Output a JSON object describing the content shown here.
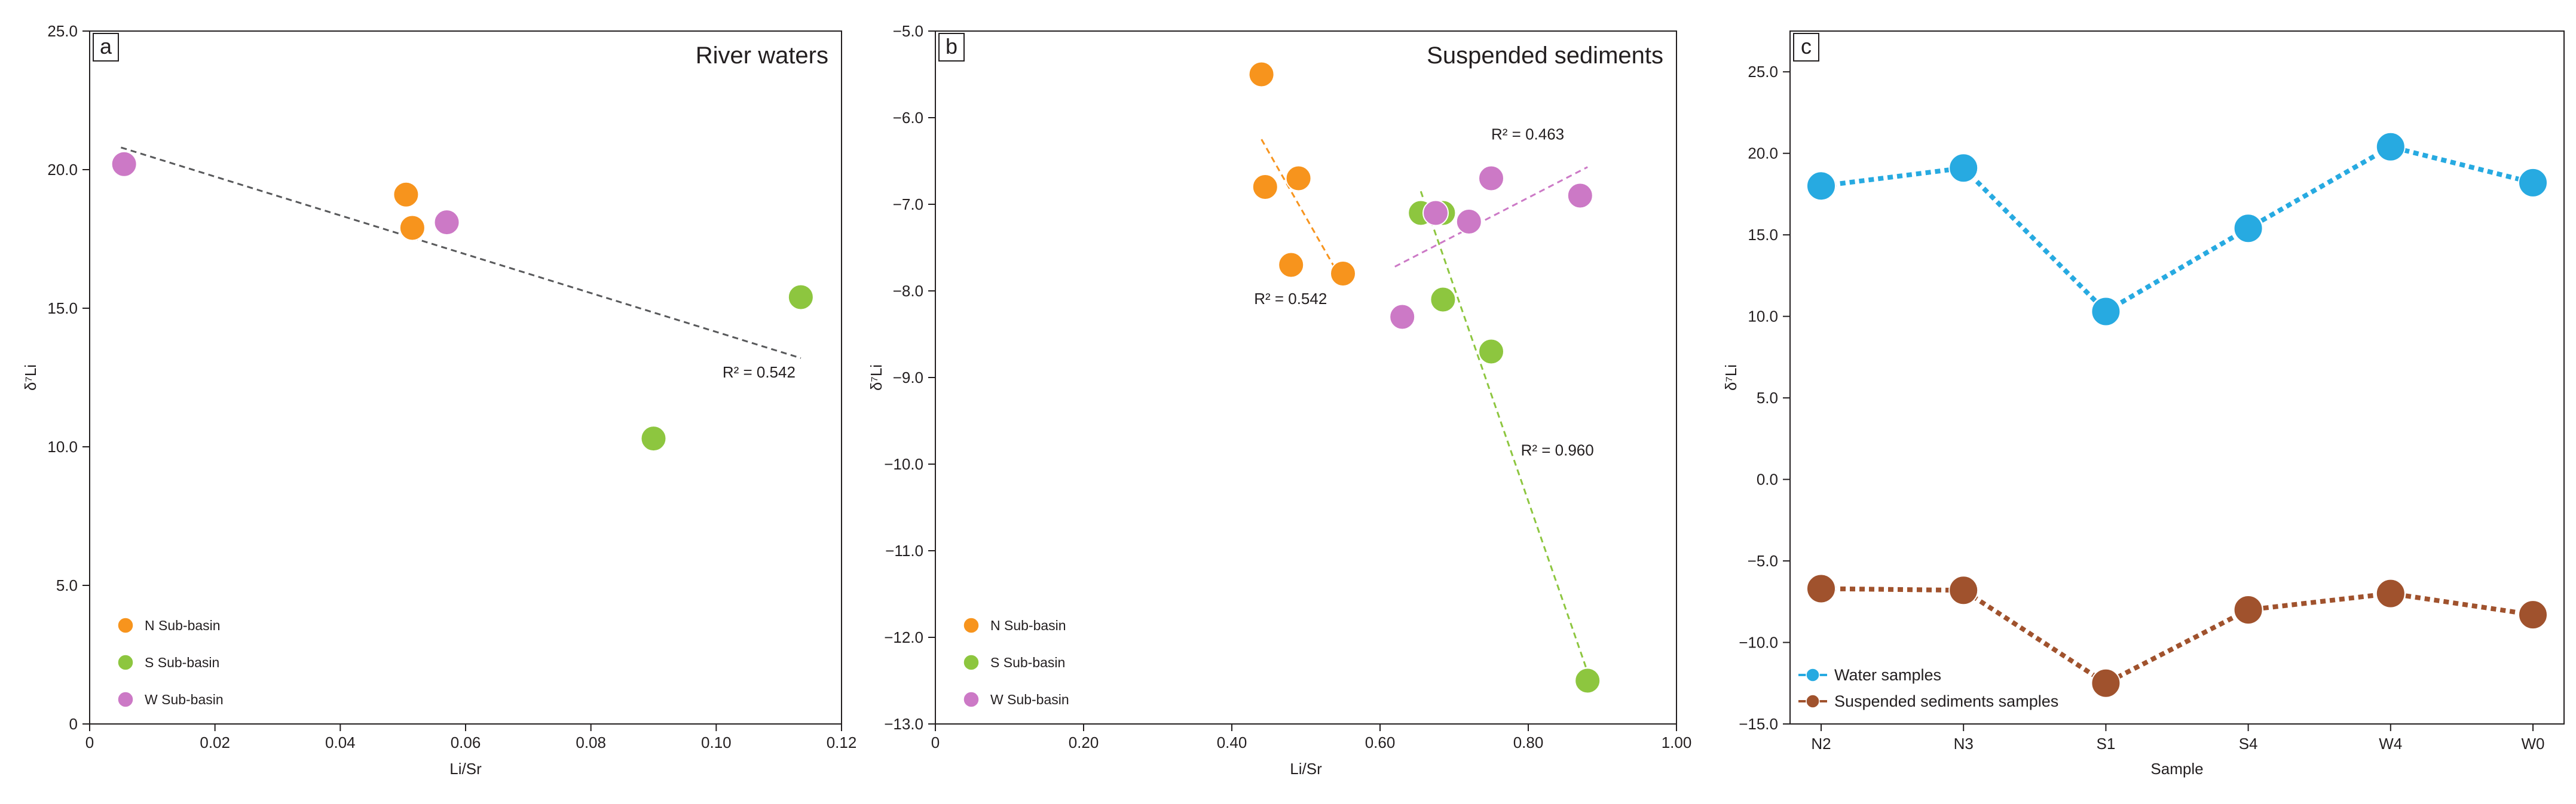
{
  "chart_data": [
    {
      "type": "scatter",
      "panel_label": "a",
      "title": "River waters",
      "xlabel": "Li/Sr",
      "ylabel": "δ⁷Li",
      "xlim": [
        0,
        0.12
      ],
      "ylim": [
        0,
        25.0
      ],
      "xticks": [
        "0",
        "0.02",
        "0.04",
        "0.06",
        "0.08",
        "0.10",
        "0.12"
      ],
      "yticks": [
        "0",
        "5.0",
        "10.0",
        "15.0",
        "20.0",
        "25.0"
      ],
      "series": [
        {
          "name": "N Sub-basin",
          "color": "#f7941d",
          "points": [
            [
              0.0505,
              19.1
            ],
            [
              0.0515,
              17.9
            ]
          ]
        },
        {
          "name": "S Sub-basin",
          "color": "#8dc63f",
          "points": [
            [
              0.09,
              10.3
            ],
            [
              0.1135,
              15.4
            ]
          ]
        },
        {
          "name": "W Sub-basin",
          "color": "#cc79c6",
          "points": [
            [
              0.0055,
              20.2
            ],
            [
              0.057,
              18.1
            ]
          ]
        }
      ],
      "trendlines": [
        {
          "color": "#58595b",
          "start": [
            0.005,
            20.8
          ],
          "end": [
            0.1135,
            13.2
          ],
          "label": "R² = 0.542",
          "label_at": [
            0.101,
            12.5
          ]
        }
      ],
      "legend": [
        "N Sub-basin",
        "S Sub-basin",
        "W Sub-basin"
      ],
      "legend_position": "bottom-left"
    },
    {
      "type": "scatter",
      "panel_label": "b",
      "title": "Suspended sediments",
      "xlabel": "Li/Sr",
      "ylabel": "δ⁷Li",
      "xlim": [
        0,
        1.0
      ],
      "ylim": [
        -13.0,
        -5.0
      ],
      "xticks": [
        "0",
        "0.20",
        "0.40",
        "0.60",
        "0.80",
        "1.00"
      ],
      "yticks": [
        "−13.0",
        "−12.0",
        "−11.0",
        "−10.0",
        "−9.0",
        "−8.0",
        "−7.0",
        "−6.0",
        "−5.0"
      ],
      "series": [
        {
          "name": "N Sub-basin",
          "color": "#f7941d",
          "points": [
            [
              0.44,
              -5.5
            ],
            [
              0.445,
              -6.8
            ],
            [
              0.49,
              -6.7
            ],
            [
              0.48,
              -7.7
            ],
            [
              0.55,
              -7.8
            ]
          ]
        },
        {
          "name": "S Sub-basin",
          "color": "#8dc63f",
          "points": [
            [
              0.655,
              -7.1
            ],
            [
              0.685,
              -7.1
            ],
            [
              0.685,
              -8.1
            ],
            [
              0.75,
              -8.7
            ],
            [
              0.88,
              -12.5
            ]
          ]
        },
        {
          "name": "W Sub-basin",
          "color": "#cc79c6",
          "points": [
            [
              0.63,
              -8.3
            ],
            [
              0.675,
              -7.1
            ],
            [
              0.72,
              -7.2
            ],
            [
              0.75,
              -6.7
            ],
            [
              0.87,
              -6.9
            ]
          ]
        }
      ],
      "trendlines": [
        {
          "color": "#f7941d",
          "start": [
            0.44,
            -6.25
          ],
          "end": [
            0.55,
            -7.9
          ],
          "label": "R² = 0.542",
          "label_at": [
            0.43,
            -8.15
          ]
        },
        {
          "color": "#8dc63f",
          "start": [
            0.655,
            -6.85
          ],
          "end": [
            0.88,
            -12.4
          ],
          "label": "R² = 0.960",
          "label_at": [
            0.79,
            -9.9
          ]
        },
        {
          "color": "#cc79c6",
          "start": [
            0.62,
            -7.72
          ],
          "end": [
            0.88,
            -6.57
          ],
          "label": "R² = 0.463",
          "label_at": [
            0.75,
            -6.25
          ]
        }
      ],
      "legend": [
        "N Sub-basin",
        "S Sub-basin",
        "W Sub-basin"
      ],
      "legend_position": "bottom-left"
    },
    {
      "type": "line",
      "panel_label": "c",
      "title": "",
      "xlabel": "Sample",
      "ylabel": "δ⁷Li",
      "ylim": [
        -15.0,
        27.5
      ],
      "categories": [
        "N2",
        "N3",
        "S1",
        "S4",
        "W4",
        "W0"
      ],
      "yticks": [
        "−15.0",
        "−10.0",
        "−5.0",
        "0.0",
        "5.0",
        "10.0",
        "15.0",
        "20.0",
        "25.0"
      ],
      "series": [
        {
          "name": "Water samples",
          "color": "#27aae1",
          "values": [
            18.0,
            19.1,
            10.3,
            15.4,
            20.4,
            18.2
          ]
        },
        {
          "name": "Suspended sediments samples",
          "color": "#a0522d",
          "values": [
            -6.7,
            -6.8,
            -12.5,
            -8.0,
            -7.0,
            -8.3
          ]
        }
      ],
      "legend": [
        "Water samples",
        "Suspended sediments samples"
      ],
      "legend_position": "bottom-left"
    }
  ]
}
